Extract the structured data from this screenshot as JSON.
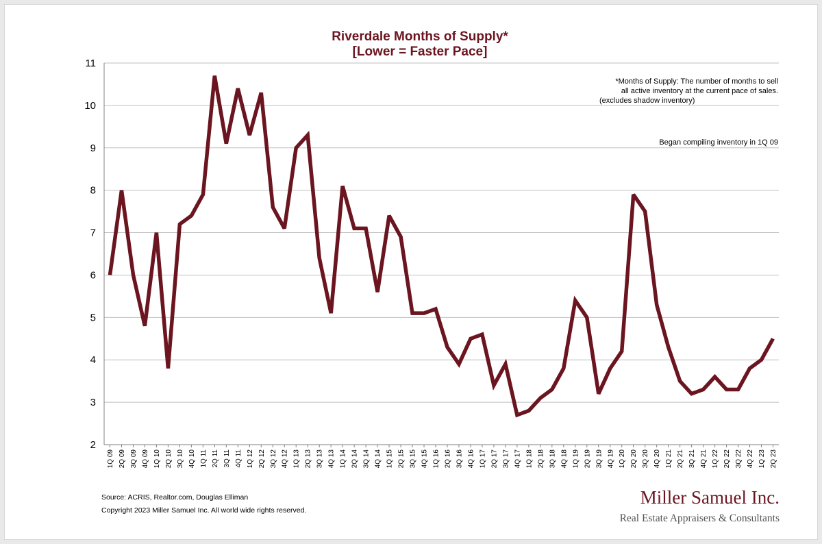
{
  "colors": {
    "accent": "#6b1520",
    "grid": "#bfbfbf",
    "axis": "#808080",
    "logo_sub": "#555555"
  },
  "chart_data": {
    "type": "line",
    "title": "Riverdale Months of Supply*",
    "subtitle": "[Lower = Faster Pace]",
    "xlabel": "",
    "ylabel": "",
    "ylim": [
      2,
      11
    ],
    "yticks": [
      2,
      3,
      4,
      5,
      6,
      7,
      8,
      9,
      10,
      11
    ],
    "grid": true,
    "legend": "none",
    "categories": [
      "1Q 09",
      "2Q 09",
      "3Q 09",
      "4Q 09",
      "1Q 10",
      "2Q 10",
      "3Q 10",
      "4Q 10",
      "1Q 11",
      "2Q 11",
      "3Q 11",
      "4Q 11",
      "1Q 12",
      "2Q 12",
      "3Q 12",
      "4Q 12",
      "1Q 13",
      "2Q 13",
      "3Q 13",
      "4Q 13",
      "1Q 14",
      "2Q 14",
      "3Q 14",
      "4Q 14",
      "1Q 15",
      "2Q 15",
      "3Q 15",
      "4Q 15",
      "1Q 16",
      "2Q 16",
      "3Q 16",
      "4Q 16",
      "1Q 17",
      "2Q 17",
      "3Q 17",
      "4Q 17",
      "1Q 18",
      "2Q 18",
      "3Q 18",
      "4Q 18",
      "1Q 19",
      "2Q 19",
      "3Q 19",
      "4Q 19",
      "1Q 20",
      "2Q 20",
      "3Q 20",
      "4Q 20",
      "1Q 21",
      "2Q 21",
      "3Q 21",
      "4Q 21",
      "1Q 22",
      "2Q 22",
      "3Q 22",
      "4Q 22",
      "1Q 23",
      "2Q 23"
    ],
    "series": [
      {
        "values": [
          6.0,
          8.0,
          6.0,
          4.8,
          7.0,
          3.8,
          7.2,
          7.4,
          7.9,
          10.7,
          9.1,
          10.4,
          9.3,
          10.3,
          7.6,
          7.1,
          9.0,
          9.3,
          6.4,
          5.1,
          8.1,
          7.1,
          7.1,
          5.6,
          7.4,
          6.9,
          5.1,
          5.1,
          5.2,
          4.3,
          3.9,
          4.5,
          4.6,
          3.4,
          3.9,
          2.7,
          2.8,
          3.1,
          3.3,
          3.8,
          5.4,
          5.0,
          3.2,
          3.8,
          4.2,
          7.9,
          7.5,
          5.3,
          4.3,
          3.5,
          3.2,
          3.3,
          3.6,
          3.3,
          3.3,
          3.8,
          4.0,
          4.5
        ]
      }
    ],
    "annotations": [
      "*Months of Supply: The number of months to sell",
      "all active inventory at the current pace of sales.",
      "(excludes shadow inventory)",
      "Began compiling inventory in 1Q 09"
    ]
  },
  "footer": {
    "source": "Source: ACRIS, Realtor.com, Douglas Elliman",
    "copyright": "Copyright 2023 Miller Samuel Inc.  All world wide rights reserved."
  },
  "logo": {
    "name": "Miller Samuel Inc.",
    "tagline": "Real Estate Appraisers & Consultants"
  }
}
